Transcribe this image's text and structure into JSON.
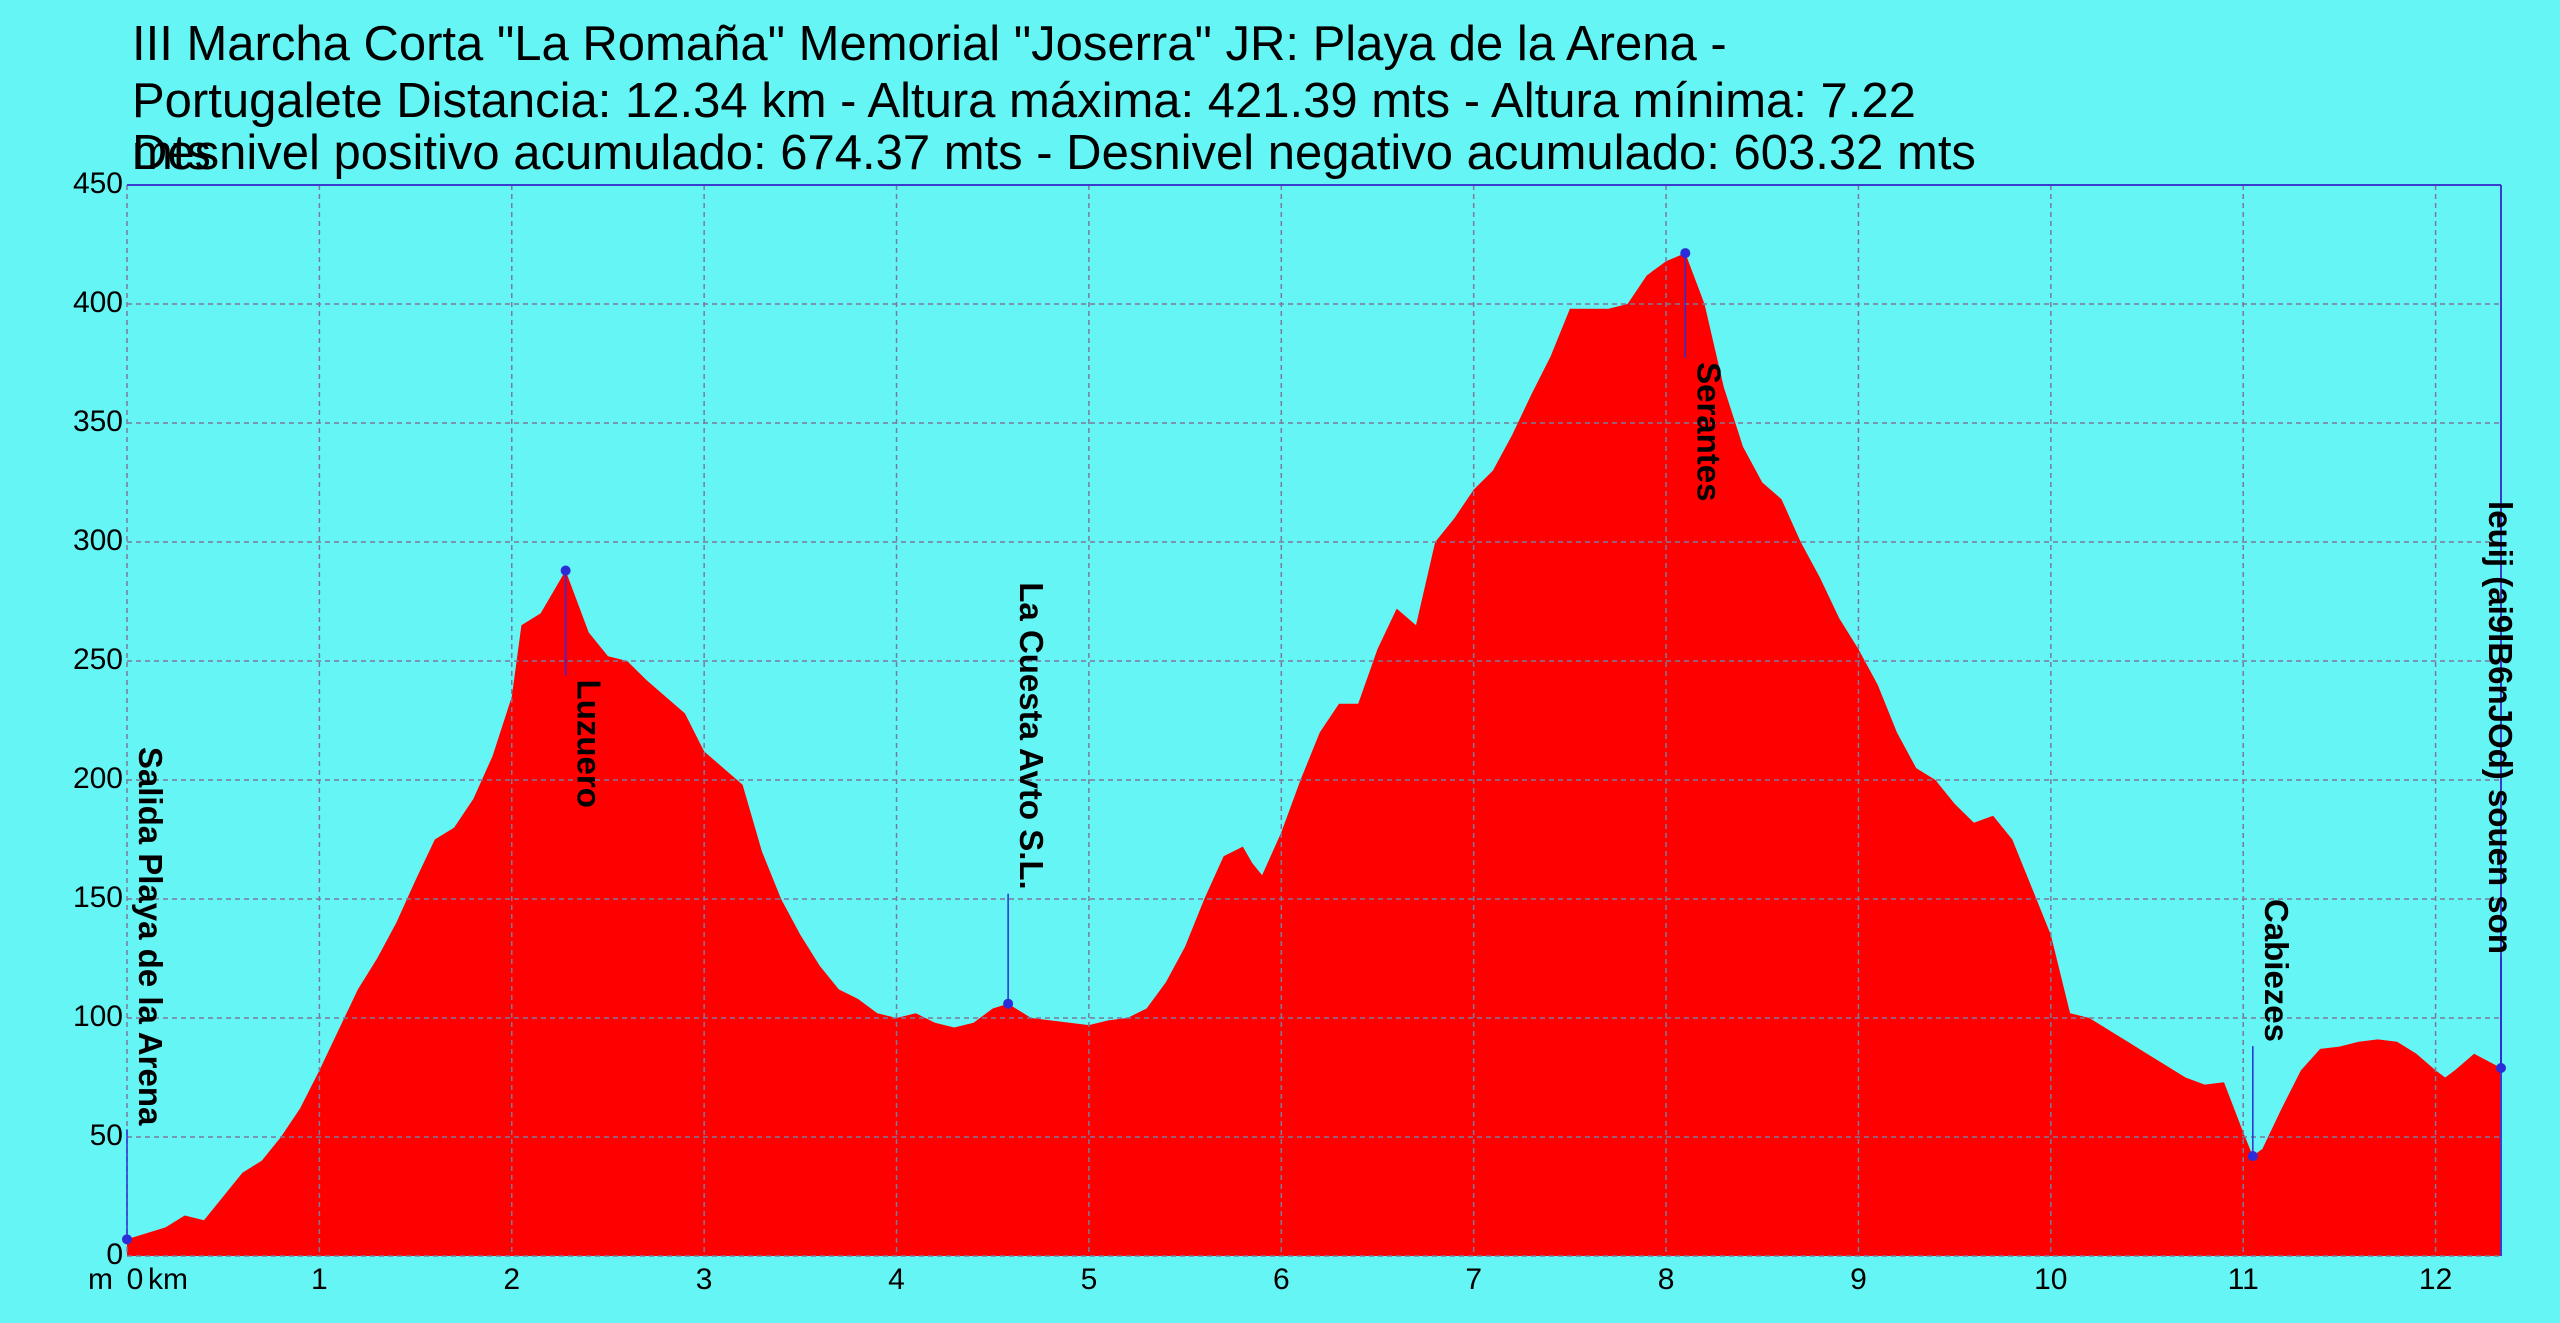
{
  "chart_data": {
    "type": "area",
    "title_lines": [
      "III Marcha Corta \"La Romaña\" Memorial \"Joserra\" JR: Playa de la Arena -",
      "Portugalete Distancia: 12.34 km - Altura máxima: 421.39 mts - Altura mínima: 7.22",
      "mts",
      "Desnivel positivo acumulado: 674.37 mts - Desnivel negativo acumulado: 603.32 mts"
    ],
    "x_label": "km",
    "y_label": "m",
    "color": "#ff0000",
    "background": "#66f5f5",
    "grid": true,
    "xlim": [
      0,
      12.34
    ],
    "ylim": [
      0,
      450
    ],
    "xticks": [
      0,
      1,
      2,
      3,
      4,
      5,
      6,
      7,
      8,
      9,
      10,
      11,
      12
    ],
    "yticks": [
      0,
      50,
      100,
      150,
      200,
      250,
      300,
      350,
      400,
      450
    ],
    "x": [
      0,
      0.2,
      0.3,
      0.4,
      0.5,
      0.6,
      0.7,
      0.8,
      0.9,
      1.0,
      1.1,
      1.2,
      1.3,
      1.4,
      1.5,
      1.6,
      1.7,
      1.8,
      1.9,
      2.0,
      2.05,
      2.15,
      2.28,
      2.4,
      2.5,
      2.6,
      2.7,
      2.8,
      2.9,
      3.0,
      3.1,
      3.2,
      3.3,
      3.4,
      3.5,
      3.6,
      3.7,
      3.8,
      3.9,
      4.0,
      4.1,
      4.2,
      4.3,
      4.4,
      4.5,
      4.58,
      4.7,
      4.8,
      4.9,
      5.0,
      5.1,
      5.2,
      5.3,
      5.4,
      5.5,
      5.6,
      5.7,
      5.8,
      5.85,
      5.9,
      6.0,
      6.1,
      6.2,
      6.3,
      6.4,
      6.5,
      6.6,
      6.7,
      6.8,
      6.9,
      7.0,
      7.1,
      7.2,
      7.3,
      7.4,
      7.5,
      7.6,
      7.7,
      7.8,
      7.9,
      8.0,
      8.1,
      8.2,
      8.3,
      8.4,
      8.5,
      8.6,
      8.7,
      8.8,
      8.9,
      9.0,
      9.1,
      9.2,
      9.3,
      9.4,
      9.5,
      9.6,
      9.7,
      9.8,
      9.9,
      10.0,
      10.1,
      10.2,
      10.3,
      10.4,
      10.5,
      10.6,
      10.7,
      10.8,
      10.9,
      11.0,
      11.05,
      11.1,
      11.2,
      11.3,
      11.4,
      11.5,
      11.6,
      11.7,
      11.8,
      11.9,
      12.0,
      12.05,
      12.1,
      12.2,
      12.34
    ],
    "values": [
      7,
      12,
      17,
      15,
      25,
      35,
      40,
      50,
      62,
      78,
      95,
      112,
      125,
      140,
      158,
      175,
      180,
      192,
      210,
      235,
      265,
      270,
      288,
      262,
      252,
      250,
      242,
      235,
      228,
      212,
      205,
      198,
      170,
      150,
      135,
      122,
      112,
      108,
      102,
      100,
      102,
      98,
      96,
      98,
      104,
      106,
      100,
      99,
      98,
      97,
      99,
      100,
      104,
      115,
      130,
      150,
      168,
      172,
      165,
      160,
      178,
      200,
      220,
      232,
      232,
      255,
      272,
      265,
      300,
      310,
      322,
      330,
      345,
      362,
      378,
      398,
      398,
      398,
      400,
      412,
      418,
      421.39,
      400,
      365,
      340,
      325,
      318,
      300,
      285,
      268,
      255,
      240,
      220,
      205,
      200,
      190,
      182,
      185,
      175,
      155,
      135,
      102,
      100,
      95,
      90,
      85,
      80,
      75,
      72,
      73,
      52,
      42,
      45,
      62,
      78,
      87,
      88,
      90,
      91,
      90,
      85,
      78,
      75,
      78,
      85,
      79
    ],
    "waypoints": [
      {
        "name": "Salida Playa de la Arena",
        "x": 0,
        "y": 7
      },
      {
        "name": "Luzuero",
        "x": 2.28,
        "y": 288
      },
      {
        "name": "La Cuesta Avto S.L.",
        "x": 4.58,
        "y": 106
      },
      {
        "name": "Serantes",
        "x": 8.1,
        "y": 421.39
      },
      {
        "name": "Cabiezes",
        "x": 11.05,
        "y": 42
      },
      {
        "name": "leuij (ai9lB6nJOd) souen son",
        "x": 12.34,
        "y": 79
      }
    ]
  }
}
